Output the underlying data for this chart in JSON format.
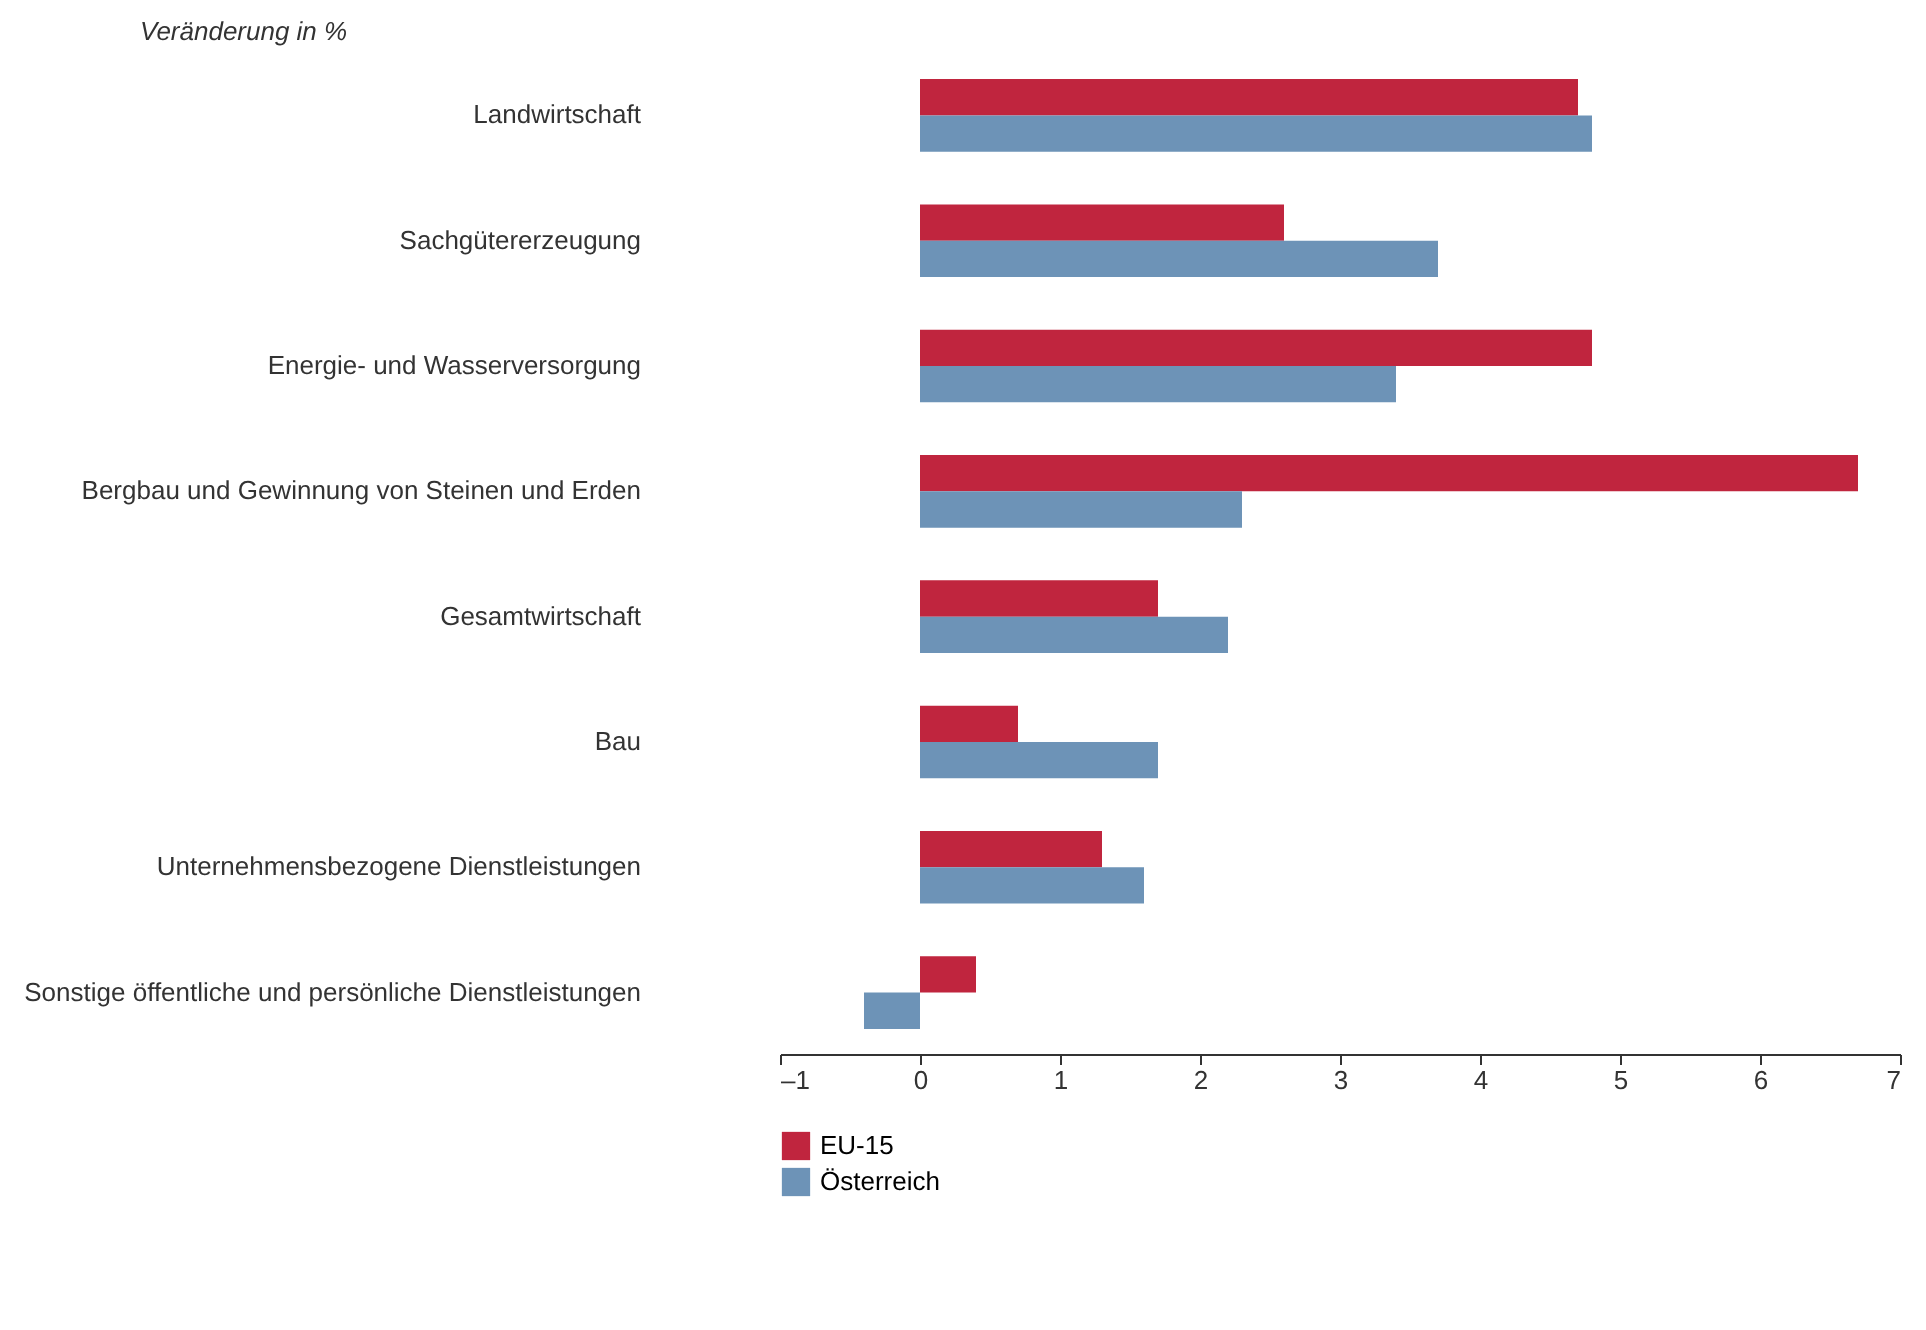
{
  "chart_data": {
    "type": "bar",
    "orientation": "horizontal",
    "title": "Veränderung in %",
    "categories": [
      "Landwirtschaft",
      "Sachgütererzeugung",
      "Energie- und Wasserversorgung",
      "Bergbau und Gewinnung von Steinen und Erden",
      "Gesamtwirtschaft",
      "Bau",
      "Unternehmensbezogene Dienstleistungen",
      "Sonstige öffentliche und  persönliche Dienstleistungen"
    ],
    "series": [
      {
        "name": "EU-15",
        "color": "#c0253e",
        "values": [
          4.7,
          2.6,
          4.8,
          6.7,
          1.7,
          0.7,
          1.3,
          0.4
        ]
      },
      {
        "name": "Österreich",
        "color": "#6d93b7",
        "values": [
          4.8,
          3.7,
          3.4,
          2.3,
          2.2,
          1.7,
          1.6,
          -0.4
        ]
      }
    ],
    "xlim": [
      -1,
      7
    ],
    "xticks": [
      {
        "value": -1,
        "label": "–1"
      },
      0,
      1,
      2,
      3,
      4,
      5,
      6,
      7
    ],
    "grid": false,
    "legend": "bottom left"
  }
}
